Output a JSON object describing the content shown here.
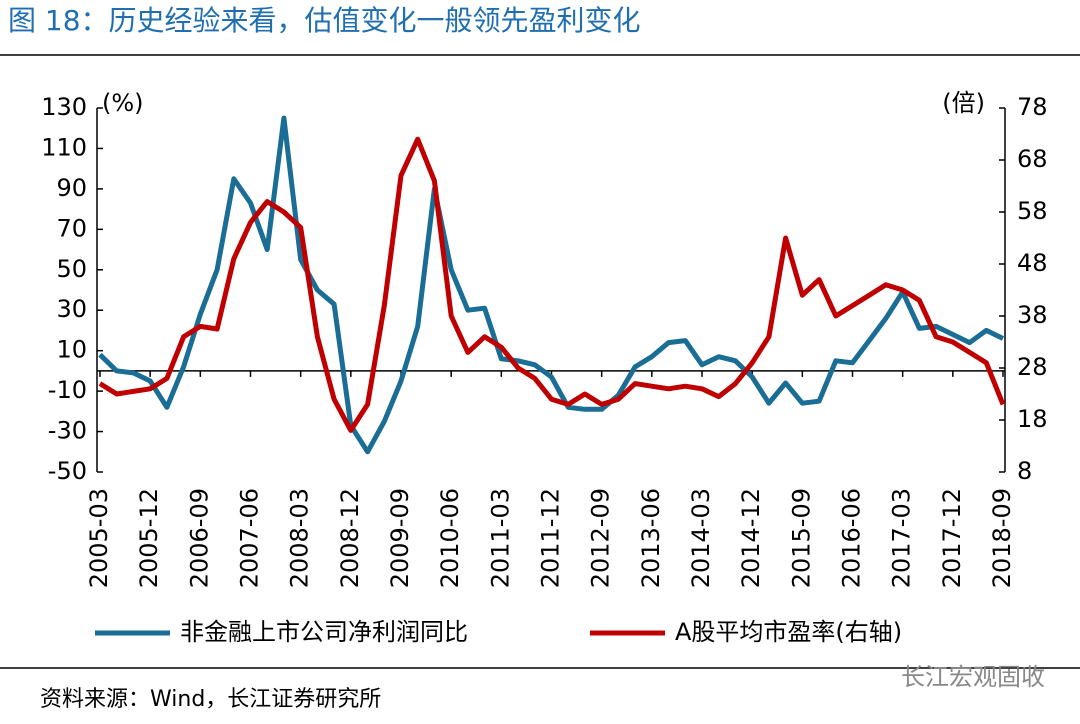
{
  "chart_data": {
    "type": "line",
    "title": "图 18：历史经验来看，估值变化一般领先盈利变化",
    "y_unit": "(%)",
    "y2_unit": "(倍)",
    "source": "资料来源：Wind，长江证券研究所",
    "watermark": "长江宏观固收",
    "categories": [
      "2005-03",
      null,
      null,
      "2005-12",
      null,
      null,
      "2006-09",
      null,
      null,
      "2007-06",
      null,
      null,
      "2008-03",
      null,
      null,
      "2008-12",
      null,
      null,
      "2009-09",
      null,
      null,
      "2010-06",
      null,
      null,
      "2011-03",
      null,
      null,
      "2011-12",
      null,
      null,
      "2012-09",
      null,
      null,
      "2013-06",
      null,
      null,
      "2014-03",
      null,
      null,
      "2014-12",
      null,
      null,
      "2015-09",
      null,
      null,
      "2016-06",
      null,
      null,
      "2017-03",
      null,
      null,
      "2017-12",
      null,
      null,
      "2018-09"
    ],
    "series": [
      {
        "name": "非金融上市公司净利润同比",
        "color": "#1a6d94",
        "values": [
          8,
          0,
          -1,
          -5,
          -18,
          2,
          28,
          50,
          95,
          83,
          60,
          125,
          55,
          40,
          33,
          -27,
          -40,
          -25,
          -5,
          22,
          90,
          50,
          30,
          31,
          6,
          5,
          3,
          -3,
          -18,
          -19,
          -19,
          -12,
          2,
          7,
          14,
          15,
          3,
          7,
          5,
          -3,
          -16,
          -6,
          -16,
          -15,
          5,
          4,
          15,
          26,
          39,
          21,
          22,
          18,
          14,
          20,
          16
        ]
      },
      {
        "name": "A股平均市盈率(右轴)",
        "color": "#c00000",
        "axis": "y2",
        "values": [
          25,
          23,
          23.5,
          24,
          26,
          34,
          36,
          35.5,
          49,
          56,
          60,
          58,
          55,
          34,
          22,
          16,
          21,
          40,
          65,
          72,
          64,
          38,
          31,
          34,
          32,
          28,
          26,
          22,
          21,
          23,
          21,
          22,
          25,
          24.5,
          24,
          24.5,
          24,
          22.5,
          25,
          29,
          34,
          53,
          42,
          45,
          38,
          40,
          42,
          44,
          43,
          41,
          34,
          33,
          31,
          29,
          21
        ]
      }
    ],
    "ylim": [
      -50,
      130
    ],
    "yticks": [
      130,
      110,
      90,
      70,
      50,
      30,
      10,
      -10,
      -30,
      -50
    ],
    "y2lim": [
      8,
      78
    ],
    "y2ticks": [
      78,
      68,
      58,
      48,
      38,
      28,
      18,
      8
    ],
    "legend": "bottom"
  }
}
